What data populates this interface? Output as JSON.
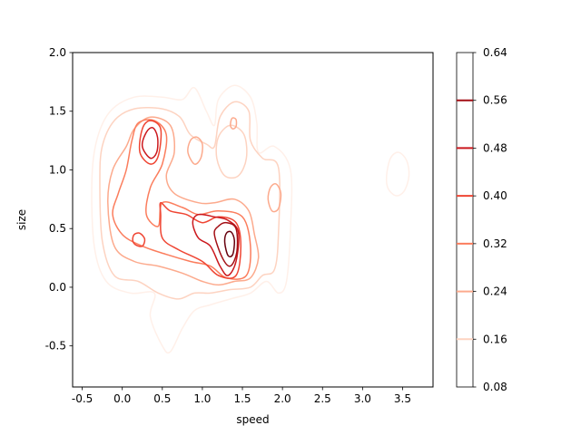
{
  "chart_data": {
    "type": "contour",
    "title": "",
    "xlabel": "speed",
    "ylabel": "size",
    "xlim": [
      -0.62,
      3.88
    ],
    "ylim": [
      -0.85,
      2.0
    ],
    "xticks": [
      "-0.5",
      "0.0",
      "0.5",
      "1.0",
      "1.5",
      "2.0",
      "2.5",
      "3.0",
      "3.5"
    ],
    "xtick_values": [
      -0.5,
      0.0,
      0.5,
      1.0,
      1.5,
      2.0,
      2.5,
      3.0,
      3.5
    ],
    "yticks": [
      "-0.5",
      "0.0",
      "0.5",
      "1.0",
      "1.5",
      "2.0"
    ],
    "ytick_values": [
      -0.5,
      0.0,
      0.5,
      1.0,
      1.5,
      2.0
    ],
    "colormap": "Reds",
    "grid": false,
    "colorbar": {
      "range": [
        0.08,
        0.64
      ],
      "ticks": [
        "0.08",
        "0.16",
        "0.24",
        "0.32",
        "0.40",
        "0.48",
        "0.56",
        "0.64"
      ],
      "tick_values": [
        0.08,
        0.16,
        0.24,
        0.32,
        0.4,
        0.48,
        0.56,
        0.64
      ]
    },
    "levels": [
      {
        "value": 0.08,
        "color": "#fff0e9"
      },
      {
        "value": 0.16,
        "color": "#fdd3c1"
      },
      {
        "value": 0.24,
        "color": "#fcaa8d"
      },
      {
        "value": 0.32,
        "color": "#fb7d5d"
      },
      {
        "value": 0.4,
        "color": "#ef4533"
      },
      {
        "value": 0.48,
        "color": "#cb181d"
      },
      {
        "value": 0.56,
        "color": "#a30f15"
      },
      {
        "value": 0.64,
        "color": "#67000d"
      }
    ],
    "contours": [
      {
        "level": 0.08,
        "points": [
          [
            -0.38,
            0.9
          ],
          [
            -0.32,
            1.25
          ],
          [
            -0.15,
            1.5
          ],
          [
            0.15,
            1.62
          ],
          [
            0.5,
            1.62
          ],
          [
            0.75,
            1.6
          ],
          [
            0.9,
            1.7
          ],
          [
            1.05,
            1.5
          ],
          [
            1.15,
            1.38
          ],
          [
            1.2,
            1.6
          ],
          [
            1.4,
            1.72
          ],
          [
            1.6,
            1.62
          ],
          [
            1.68,
            1.4
          ],
          [
            1.7,
            1.15
          ],
          [
            1.9,
            1.2
          ],
          [
            2.1,
            1.0
          ],
          [
            2.1,
            0.5
          ],
          [
            2.05,
            0.05
          ],
          [
            1.95,
            -0.05
          ],
          [
            1.8,
            0.05
          ],
          [
            1.6,
            -0.05
          ],
          [
            1.35,
            -0.1
          ],
          [
            1.1,
            -0.15
          ],
          [
            0.9,
            -0.2
          ],
          [
            0.75,
            -0.35
          ],
          [
            0.6,
            -0.55
          ],
          [
            0.5,
            -0.5
          ],
          [
            0.35,
            -0.25
          ],
          [
            0.4,
            -0.05
          ],
          [
            0.1,
            -0.05
          ],
          [
            -0.2,
            0.05
          ],
          [
            -0.35,
            0.35
          ]
        ],
        "closed": true
      },
      {
        "level": 0.08,
        "points": [
          [
            3.3,
            0.95
          ],
          [
            3.35,
            1.1
          ],
          [
            3.45,
            1.15
          ],
          [
            3.55,
            1.08
          ],
          [
            3.58,
            0.95
          ],
          [
            3.52,
            0.82
          ],
          [
            3.42,
            0.78
          ],
          [
            3.32,
            0.84
          ]
        ],
        "closed": true
      },
      {
        "level": 0.16,
        "points": [
          [
            -0.28,
            0.9
          ],
          [
            -0.25,
            1.2
          ],
          [
            -0.1,
            1.42
          ],
          [
            0.15,
            1.52
          ],
          [
            0.5,
            1.52
          ],
          [
            0.72,
            1.45
          ],
          [
            0.85,
            1.3
          ],
          [
            1.05,
            1.22
          ],
          [
            1.15,
            1.2
          ],
          [
            1.22,
            1.45
          ],
          [
            1.4,
            1.58
          ],
          [
            1.58,
            1.5
          ],
          [
            1.6,
            1.25
          ],
          [
            1.75,
            1.1
          ],
          [
            1.95,
            1.02
          ],
          [
            1.95,
            0.45
          ],
          [
            1.9,
            0.15
          ],
          [
            1.75,
            0.1
          ],
          [
            1.6,
            0.0
          ],
          [
            1.35,
            -0.02
          ],
          [
            1.1,
            -0.05
          ],
          [
            0.9,
            -0.05
          ],
          [
            0.7,
            -0.1
          ],
          [
            0.45,
            -0.05
          ],
          [
            0.2,
            0.05
          ],
          [
            -0.1,
            0.1
          ],
          [
            -0.25,
            0.4
          ]
        ],
        "closed": true
      },
      {
        "level": 0.16,
        "points": [
          [
            1.18,
            1.1
          ],
          [
            1.2,
            1.28
          ],
          [
            1.35,
            1.38
          ],
          [
            1.52,
            1.3
          ],
          [
            1.55,
            1.1
          ],
          [
            1.45,
            0.95
          ],
          [
            1.28,
            0.95
          ]
        ],
        "closed": true
      },
      {
        "level": 0.24,
        "points": [
          [
            -0.18,
            0.72
          ],
          [
            -0.12,
            1.0
          ],
          [
            0.05,
            1.2
          ],
          [
            0.15,
            1.35
          ],
          [
            0.35,
            1.45
          ],
          [
            0.6,
            1.38
          ],
          [
            0.65,
            1.15
          ],
          [
            0.55,
            0.95
          ],
          [
            0.65,
            0.8
          ],
          [
            0.95,
            0.72
          ],
          [
            1.15,
            0.72
          ],
          [
            1.4,
            0.75
          ],
          [
            1.58,
            0.65
          ],
          [
            1.65,
            0.45
          ],
          [
            1.7,
            0.25
          ],
          [
            1.6,
            0.08
          ],
          [
            1.4,
            0.05
          ],
          [
            1.2,
            0.02
          ],
          [
            1.0,
            0.05
          ],
          [
            0.75,
            0.12
          ],
          [
            0.45,
            0.18
          ],
          [
            0.15,
            0.22
          ],
          [
            -0.1,
            0.35
          ]
        ],
        "closed": true
      },
      {
        "level": 0.24,
        "points": [
          [
            0.82,
            1.15
          ],
          [
            0.85,
            1.25
          ],
          [
            0.93,
            1.28
          ],
          [
            1.0,
            1.22
          ],
          [
            0.98,
            1.1
          ],
          [
            0.9,
            1.05
          ]
        ],
        "closed": true
      },
      {
        "level": 0.24,
        "points": [
          [
            1.82,
            0.75
          ],
          [
            1.85,
            0.85
          ],
          [
            1.92,
            0.88
          ],
          [
            1.98,
            0.8
          ],
          [
            1.95,
            0.67
          ],
          [
            1.87,
            0.65
          ]
        ],
        "closed": true
      },
      {
        "level": 0.24,
        "points": [
          [
            1.35,
            1.38
          ],
          [
            1.37,
            1.44
          ],
          [
            1.42,
            1.43
          ],
          [
            1.42,
            1.37
          ],
          [
            1.38,
            1.35
          ]
        ],
        "closed": true
      },
      {
        "level": 0.32,
        "points": [
          [
            -0.12,
            0.62
          ],
          [
            -0.05,
            0.8
          ],
          [
            0.05,
            1.0
          ],
          [
            0.12,
            1.25
          ],
          [
            0.2,
            1.4
          ],
          [
            0.4,
            1.42
          ],
          [
            0.55,
            1.3
          ],
          [
            0.5,
            1.05
          ],
          [
            0.35,
            0.85
          ],
          [
            0.3,
            0.62
          ],
          [
            0.45,
            0.52
          ],
          [
            0.5,
            0.72
          ],
          [
            0.75,
            0.68
          ],
          [
            0.95,
            0.62
          ],
          [
            1.2,
            0.65
          ],
          [
            1.5,
            0.6
          ],
          [
            1.6,
            0.35
          ],
          [
            1.55,
            0.1
          ],
          [
            1.3,
            0.08
          ],
          [
            1.1,
            0.18
          ],
          [
            0.85,
            0.22
          ],
          [
            0.55,
            0.28
          ],
          [
            0.25,
            0.35
          ],
          [
            0.0,
            0.45
          ]
        ],
        "closed": true
      },
      {
        "level": 0.4,
        "points": [
          [
            0.48,
            0.62
          ],
          [
            0.48,
            0.72
          ],
          [
            0.6,
            0.65
          ],
          [
            0.8,
            0.62
          ],
          [
            1.0,
            0.55
          ],
          [
            1.2,
            0.6
          ],
          [
            1.42,
            0.55
          ],
          [
            1.48,
            0.35
          ],
          [
            1.42,
            0.1
          ],
          [
            1.2,
            0.1
          ],
          [
            1.0,
            0.22
          ],
          [
            0.7,
            0.32
          ],
          [
            0.5,
            0.42
          ]
        ],
        "closed": true
      },
      {
        "level": 0.4,
        "points": [
          [
            0.22,
            1.15
          ],
          [
            0.25,
            1.35
          ],
          [
            0.35,
            1.42
          ],
          [
            0.48,
            1.35
          ],
          [
            0.45,
            1.12
          ],
          [
            0.35,
            1.05
          ]
        ],
        "closed": true
      },
      {
        "level": 0.4,
        "points": [
          [
            0.13,
            0.4
          ],
          [
            0.15,
            0.45
          ],
          [
            0.22,
            0.46
          ],
          [
            0.28,
            0.41
          ],
          [
            0.25,
            0.35
          ],
          [
            0.17,
            0.36
          ]
        ],
        "closed": true
      },
      {
        "level": 0.48,
        "points": [
          [
            0.88,
            0.55
          ],
          [
            0.95,
            0.62
          ],
          [
            1.15,
            0.6
          ],
          [
            1.32,
            0.57
          ],
          [
            1.45,
            0.47
          ],
          [
            1.42,
            0.22
          ],
          [
            1.32,
            0.1
          ],
          [
            1.22,
            0.18
          ],
          [
            1.1,
            0.35
          ],
          [
            0.95,
            0.42
          ]
        ],
        "closed": true
      },
      {
        "level": 0.48,
        "points": [
          [
            0.25,
            1.2
          ],
          [
            0.3,
            1.32
          ],
          [
            0.38,
            1.36
          ],
          [
            0.44,
            1.28
          ],
          [
            0.43,
            1.15
          ],
          [
            0.35,
            1.1
          ]
        ],
        "closed": true
      },
      {
        "level": 0.56,
        "points": [
          [
            1.15,
            0.45
          ],
          [
            1.2,
            0.52
          ],
          [
            1.3,
            0.55
          ],
          [
            1.42,
            0.5
          ],
          [
            1.43,
            0.3
          ],
          [
            1.35,
            0.18
          ],
          [
            1.25,
            0.25
          ]
        ],
        "closed": true
      },
      {
        "level": 0.64,
        "points": [
          [
            1.28,
            0.38
          ],
          [
            1.3,
            0.46
          ],
          [
            1.36,
            0.47
          ],
          [
            1.4,
            0.4
          ],
          [
            1.38,
            0.28
          ],
          [
            1.32,
            0.27
          ]
        ],
        "closed": true
      }
    ]
  }
}
